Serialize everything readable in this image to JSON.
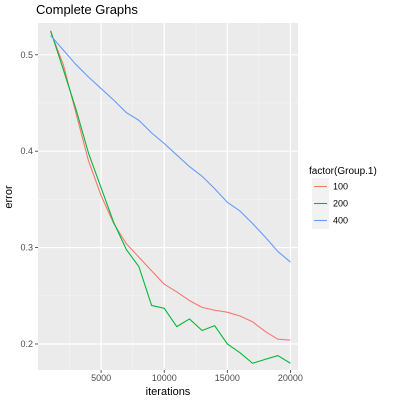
{
  "chart_data": {
    "type": "line",
    "title": "Complete Graphs",
    "xlabel": "iterations",
    "ylabel": "error",
    "xlim": [
      0,
      20600
    ],
    "ylim": [
      0.173,
      0.533
    ],
    "x_ticks": [
      5000,
      10000,
      15000,
      20000
    ],
    "x_tick_labels": [
      "5000",
      "10000",
      "15000",
      "20000"
    ],
    "y_ticks": [
      0.2,
      0.3,
      0.4,
      0.5
    ],
    "y_tick_labels": [
      "0.2",
      "0.3",
      "0.4",
      "0.5"
    ],
    "grid": true,
    "legend_title": "factor(Group.1)",
    "legend_position": "right",
    "series": [
      {
        "name": "100",
        "color": "#F8766D",
        "x": [
          1000,
          2000,
          3000,
          4000,
          5000,
          6000,
          7000,
          8000,
          9000,
          10000,
          11000,
          12000,
          13000,
          14000,
          15000,
          16000,
          17000,
          18000,
          19000,
          20000
        ],
        "y": [
          0.524,
          0.49,
          0.44,
          0.39,
          0.354,
          0.325,
          0.304,
          0.29,
          0.276,
          0.262,
          0.254,
          0.245,
          0.238,
          0.235,
          0.233,
          0.229,
          0.223,
          0.213,
          0.205,
          0.204
        ]
      },
      {
        "name": "200",
        "color": "#00BA38",
        "x": [
          1000,
          2000,
          3000,
          4000,
          5000,
          6000,
          7000,
          8000,
          9000,
          10000,
          11000,
          12000,
          13000,
          14000,
          15000,
          16000,
          17000,
          18000,
          19000,
          20000
        ],
        "y": [
          0.525,
          0.485,
          0.444,
          0.398,
          0.362,
          0.326,
          0.298,
          0.28,
          0.24,
          0.237,
          0.218,
          0.226,
          0.214,
          0.219,
          0.2,
          0.191,
          0.18,
          0.184,
          0.188,
          0.18
        ]
      },
      {
        "name": "400",
        "color": "#619CFF",
        "x": [
          1000,
          2000,
          3000,
          4000,
          5000,
          6000,
          7000,
          8000,
          9000,
          10000,
          11000,
          12000,
          13000,
          14000,
          15000,
          16000,
          17000,
          18000,
          19000,
          20000
        ],
        "y": [
          0.52,
          0.505,
          0.49,
          0.477,
          0.465,
          0.453,
          0.44,
          0.432,
          0.419,
          0.408,
          0.396,
          0.384,
          0.374,
          0.361,
          0.347,
          0.338,
          0.325,
          0.311,
          0.296,
          0.285
        ]
      }
    ]
  }
}
